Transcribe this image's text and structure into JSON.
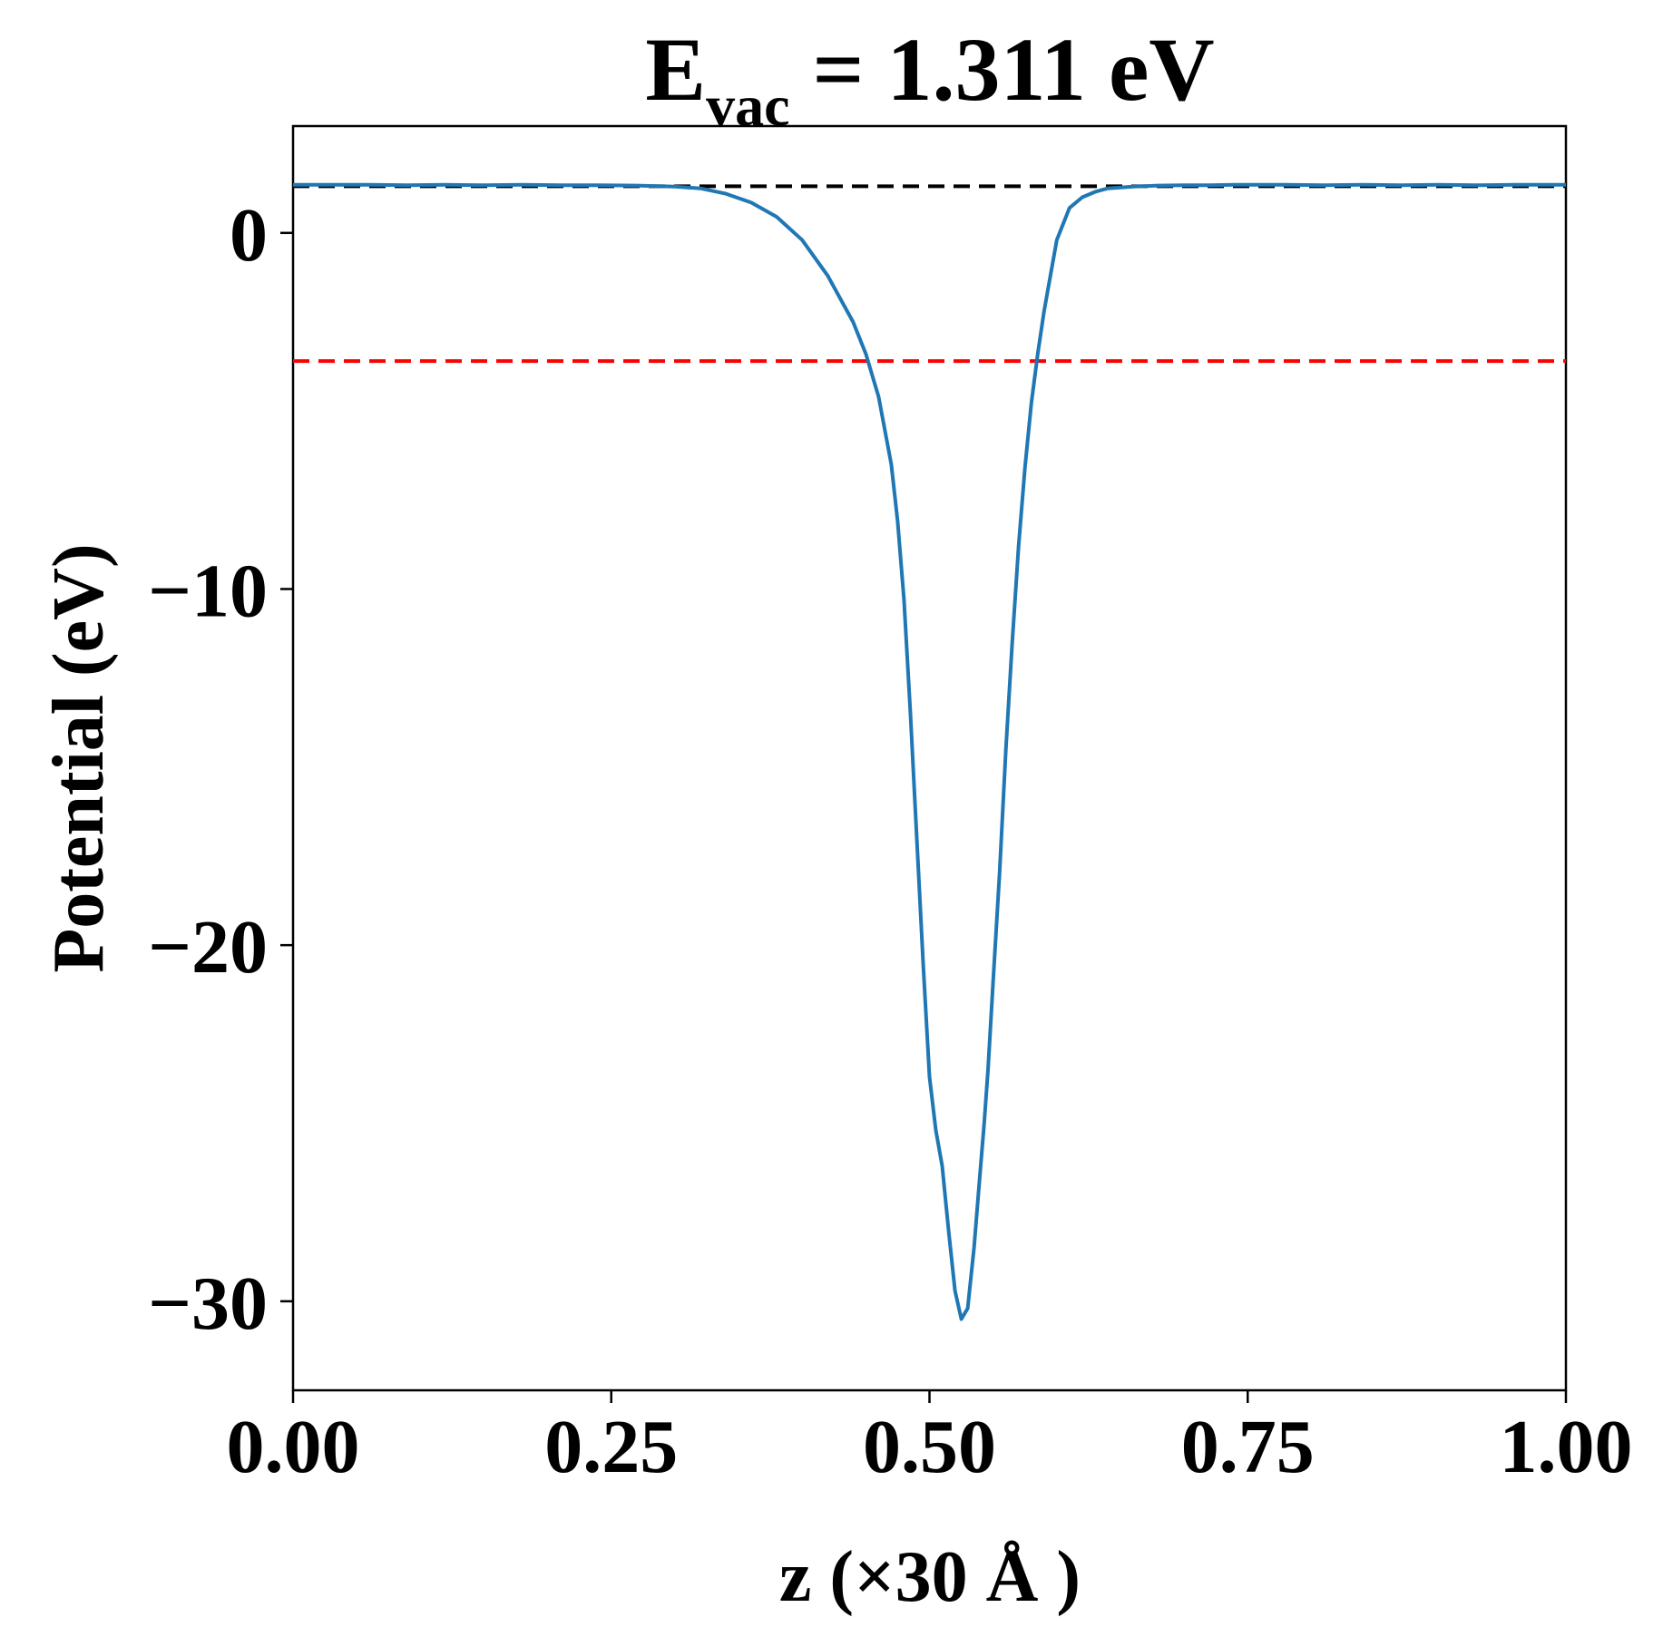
{
  "chart_data": {
    "type": "line",
    "title": {
      "main": "E",
      "subscript": "vac",
      "suffix": " = 1.311 eV"
    },
    "xlabel": "z (×30 Å )",
    "ylabel": "Potential (eV)",
    "xlim": [
      0,
      1
    ],
    "ylim": [
      -32.5,
      3
    ],
    "xticks": [
      0,
      0.25,
      0.5,
      0.75,
      1.0
    ],
    "xtick_labels": [
      "0.00",
      "0.25",
      "0.50",
      "0.75",
      "1.00"
    ],
    "yticks": [
      0,
      -10,
      -20,
      -30
    ],
    "ytick_labels": [
      "0",
      "−10",
      "−20",
      "−30"
    ],
    "grid": false,
    "series": [
      {
        "color": "#1f77b4",
        "x": [
          0.0,
          0.03,
          0.06,
          0.09,
          0.12,
          0.15,
          0.18,
          0.21,
          0.24,
          0.27,
          0.3,
          0.32,
          0.34,
          0.36,
          0.38,
          0.4,
          0.42,
          0.44,
          0.45,
          0.46,
          0.47,
          0.475,
          0.48,
          0.485,
          0.49,
          0.495,
          0.5,
          0.505,
          0.51,
          0.515,
          0.52,
          0.525,
          0.53,
          0.535,
          0.54,
          0.543,
          0.546,
          0.55,
          0.555,
          0.56,
          0.565,
          0.57,
          0.575,
          0.58,
          0.585,
          0.59,
          0.595,
          0.6,
          0.605,
          0.61,
          0.62,
          0.63,
          0.64,
          0.66,
          0.68,
          0.7,
          0.72,
          0.74,
          0.76,
          0.78,
          0.81,
          0.84,
          0.87,
          0.9,
          0.93,
          0.96,
          1.0
        ],
        "y": [
          1.35,
          1.35,
          1.35,
          1.34,
          1.35,
          1.34,
          1.35,
          1.34,
          1.34,
          1.33,
          1.3,
          1.25,
          1.1,
          0.85,
          0.45,
          -0.2,
          -1.2,
          -2.5,
          -3.4,
          -4.6,
          -6.5,
          -8.1,
          -10.3,
          -13.5,
          -17.0,
          -20.5,
          -23.7,
          -25.2,
          -26.2,
          -28.0,
          -29.7,
          -30.5,
          -30.2,
          -28.5,
          -26.3,
          -25.0,
          -23.5,
          -21.0,
          -18.0,
          -14.5,
          -11.5,
          -8.8,
          -6.6,
          -4.8,
          -3.4,
          -2.2,
          -1.2,
          -0.2,
          0.25,
          0.7,
          1.0,
          1.15,
          1.25,
          1.3,
          1.33,
          1.34,
          1.34,
          1.35,
          1.35,
          1.35,
          1.34,
          1.35,
          1.34,
          1.35,
          1.34,
          1.35,
          1.35
        ]
      }
    ],
    "reference_lines": [
      {
        "y": 1.311,
        "color": "#000000",
        "style": "dashed"
      },
      {
        "y": -3.6,
        "color": "#ff0000",
        "style": "dashed"
      }
    ],
    "colors": {
      "line": "#1f77b4",
      "vacuum_level": "#000000",
      "fermi_level": "#ff0000",
      "axes": "#000000"
    }
  }
}
